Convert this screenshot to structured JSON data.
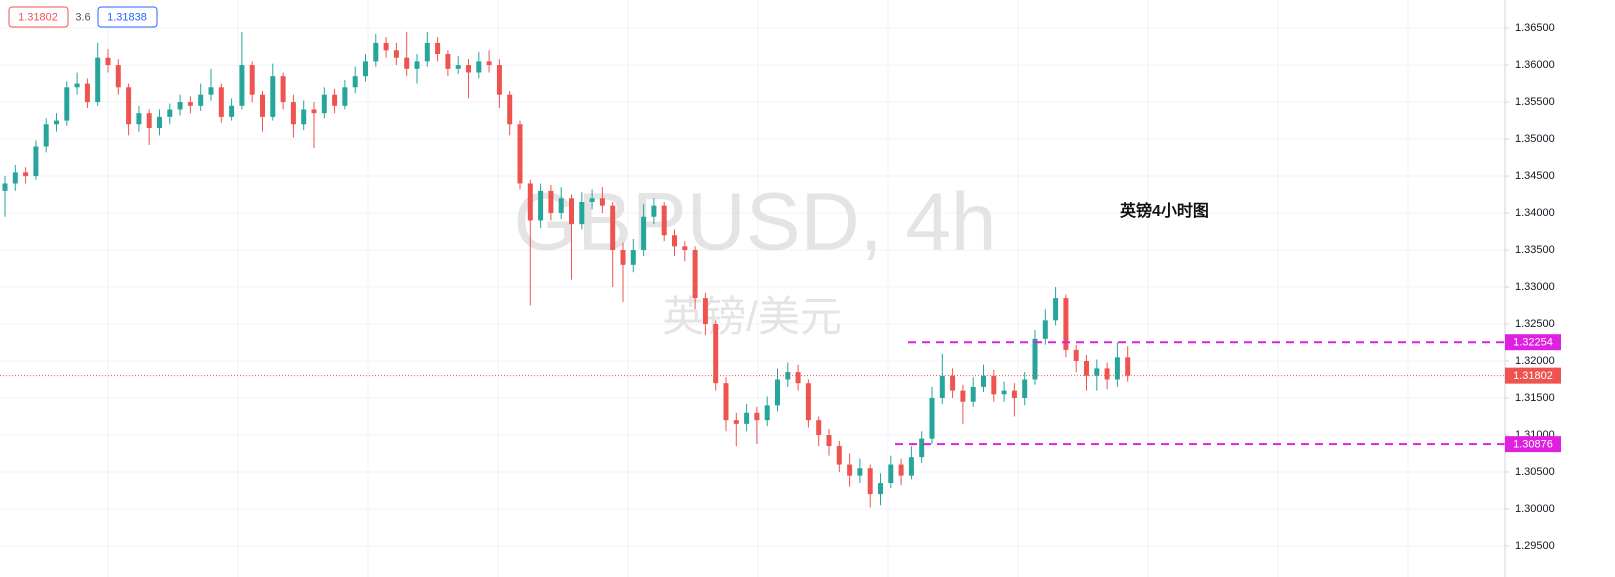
{
  "chart_data": {
    "type": "candlestick",
    "watermark": "GBPUSD, 4h",
    "watermark_sub": "英镑/美元",
    "annotation": "英镑4小时图",
    "bid": "1.31802",
    "spread": "3.6",
    "ask": "1.31838",
    "up_color": "#26a69a",
    "down_color": "#ef5350",
    "level_color": "#e020e0",
    "levels": [
      1.32254,
      1.30876
    ],
    "ylim": [
      1.2908,
      1.3688
    ],
    "yticks": [
      {
        "value": 1.365,
        "label": "1.36500"
      },
      {
        "value": 1.36,
        "label": "1.36000"
      },
      {
        "value": 1.355,
        "label": "1.35500"
      },
      {
        "value": 1.35,
        "label": "1.35000"
      },
      {
        "value": 1.345,
        "label": "1.34500"
      },
      {
        "value": 1.34,
        "label": "1.34000"
      },
      {
        "value": 1.335,
        "label": "1.33500"
      },
      {
        "value": 1.33,
        "label": "1.33000"
      },
      {
        "value": 1.325,
        "label": "1.32500"
      },
      {
        "value": 1.32,
        "label": "1.32000"
      },
      {
        "value": 1.315,
        "label": "1.31500"
      },
      {
        "value": 1.31,
        "label": "1.31000"
      },
      {
        "value": 1.305,
        "label": "1.30500"
      },
      {
        "value": 1.3,
        "label": "1.30000"
      },
      {
        "value": 1.295,
        "label": "1.29500"
      }
    ],
    "grid": true,
    "ohlc": [
      [
        1.343,
        1.345,
        1.3395,
        1.344
      ],
      [
        1.344,
        1.3465,
        1.343,
        1.3455
      ],
      [
        1.3455,
        1.3462,
        1.344,
        1.345
      ],
      [
        1.345,
        1.3498,
        1.3445,
        1.349
      ],
      [
        1.349,
        1.3528,
        1.3482,
        1.352
      ],
      [
        1.352,
        1.3535,
        1.351,
        1.3525
      ],
      [
        1.3525,
        1.3578,
        1.3518,
        1.357
      ],
      [
        1.357,
        1.359,
        1.356,
        1.3575
      ],
      [
        1.3575,
        1.3582,
        1.3542,
        1.355
      ],
      [
        1.355,
        1.363,
        1.3545,
        1.361
      ],
      [
        1.361,
        1.3622,
        1.359,
        1.36
      ],
      [
        1.36,
        1.3608,
        1.356,
        1.357
      ],
      [
        1.357,
        1.3575,
        1.3505,
        1.352
      ],
      [
        1.352,
        1.3545,
        1.351,
        1.3535
      ],
      [
        1.3535,
        1.354,
        1.3492,
        1.3515
      ],
      [
        1.3515,
        1.354,
        1.3505,
        1.353
      ],
      [
        1.353,
        1.3548,
        1.352,
        1.354
      ],
      [
        1.354,
        1.356,
        1.3532,
        1.355
      ],
      [
        1.355,
        1.3558,
        1.3535,
        1.3545
      ],
      [
        1.3545,
        1.3575,
        1.3538,
        1.356
      ],
      [
        1.356,
        1.3595,
        1.3552,
        1.357
      ],
      [
        1.357,
        1.3575,
        1.3522,
        1.353
      ],
      [
        1.353,
        1.3555,
        1.3525,
        1.3545
      ],
      [
        1.3545,
        1.3645,
        1.354,
        1.36
      ],
      [
        1.36,
        1.3605,
        1.355,
        1.356
      ],
      [
        1.356,
        1.3565,
        1.351,
        1.353
      ],
      [
        1.353,
        1.3602,
        1.3525,
        1.3585
      ],
      [
        1.3585,
        1.359,
        1.354,
        1.355
      ],
      [
        1.355,
        1.356,
        1.3502,
        1.352
      ],
      [
        1.352,
        1.3552,
        1.3512,
        1.354
      ],
      [
        1.354,
        1.355,
        1.3488,
        1.3535
      ],
      [
        1.3535,
        1.357,
        1.3528,
        1.356
      ],
      [
        1.356,
        1.3568,
        1.3535,
        1.3545
      ],
      [
        1.3545,
        1.358,
        1.354,
        1.357
      ],
      [
        1.357,
        1.3598,
        1.3562,
        1.3585
      ],
      [
        1.3585,
        1.3615,
        1.3578,
        1.3605
      ],
      [
        1.3605,
        1.3642,
        1.3598,
        1.363
      ],
      [
        1.363,
        1.3638,
        1.361,
        1.362
      ],
      [
        1.362,
        1.363,
        1.36,
        1.361
      ],
      [
        1.361,
        1.3645,
        1.3585,
        1.3595
      ],
      [
        1.3595,
        1.3615,
        1.3575,
        1.3605
      ],
      [
        1.3605,
        1.3645,
        1.3598,
        1.363
      ],
      [
        1.363,
        1.3638,
        1.3605,
        1.3615
      ],
      [
        1.3615,
        1.362,
        1.3585,
        1.3595
      ],
      [
        1.3595,
        1.3612,
        1.3588,
        1.36
      ],
      [
        1.36,
        1.3608,
        1.3555,
        1.359
      ],
      [
        1.359,
        1.3618,
        1.3582,
        1.3605
      ],
      [
        1.3605,
        1.362,
        1.359,
        1.36
      ],
      [
        1.36,
        1.3608,
        1.3542,
        1.356
      ],
      [
        1.356,
        1.3565,
        1.3505,
        1.352
      ],
      [
        1.352,
        1.3525,
        1.3432,
        1.344
      ],
      [
        1.344,
        1.3445,
        1.3275,
        1.339
      ],
      [
        1.339,
        1.344,
        1.338,
        1.343
      ],
      [
        1.343,
        1.3438,
        1.339,
        1.34
      ],
      [
        1.34,
        1.3435,
        1.3392,
        1.342
      ],
      [
        1.342,
        1.3425,
        1.331,
        1.3385
      ],
      [
        1.3385,
        1.3428,
        1.3378,
        1.3415
      ],
      [
        1.3415,
        1.3432,
        1.3405,
        1.342
      ],
      [
        1.342,
        1.3435,
        1.34,
        1.341
      ],
      [
        1.341,
        1.3415,
        1.33,
        1.335
      ],
      [
        1.335,
        1.336,
        1.328,
        1.333
      ],
      [
        1.333,
        1.3365,
        1.332,
        1.335
      ],
      [
        1.335,
        1.3412,
        1.3342,
        1.3395
      ],
      [
        1.3395,
        1.342,
        1.3385,
        1.341
      ],
      [
        1.341,
        1.3415,
        1.3362,
        1.337
      ],
      [
        1.337,
        1.3378,
        1.3342,
        1.3355
      ],
      [
        1.3355,
        1.3362,
        1.3335,
        1.335
      ],
      [
        1.335,
        1.3355,
        1.327,
        1.3285
      ],
      [
        1.3285,
        1.3292,
        1.3235,
        1.325
      ],
      [
        1.325,
        1.3255,
        1.316,
        1.317
      ],
      [
        1.317,
        1.3178,
        1.3105,
        1.312
      ],
      [
        1.312,
        1.313,
        1.3085,
        1.3115
      ],
      [
        1.3115,
        1.3142,
        1.3105,
        1.313
      ],
      [
        1.313,
        1.3138,
        1.3088,
        1.312
      ],
      [
        1.312,
        1.3152,
        1.3112,
        1.314
      ],
      [
        1.314,
        1.319,
        1.3132,
        1.3175
      ],
      [
        1.3175,
        1.3198,
        1.3165,
        1.3185
      ],
      [
        1.3185,
        1.3195,
        1.316,
        1.317
      ],
      [
        1.317,
        1.3175,
        1.311,
        1.312
      ],
      [
        1.312,
        1.3125,
        1.3085,
        1.31
      ],
      [
        1.31,
        1.3108,
        1.3072,
        1.3085
      ],
      [
        1.3085,
        1.3092,
        1.305,
        1.306
      ],
      [
        1.306,
        1.3075,
        1.303,
        1.3045
      ],
      [
        1.3045,
        1.3068,
        1.3035,
        1.3055
      ],
      [
        1.3055,
        1.306,
        1.3002,
        1.302
      ],
      [
        1.302,
        1.3048,
        1.3005,
        1.3035
      ],
      [
        1.3035,
        1.3072,
        1.3028,
        1.306
      ],
      [
        1.306,
        1.3068,
        1.3032,
        1.3045
      ],
      [
        1.3045,
        1.3085,
        1.304,
        1.307
      ],
      [
        1.307,
        1.3105,
        1.3062,
        1.3095
      ],
      [
        1.3095,
        1.3165,
        1.3088,
        1.315
      ],
      [
        1.315,
        1.321,
        1.3142,
        1.318
      ],
      [
        1.318,
        1.319,
        1.315,
        1.316
      ],
      [
        1.316,
        1.3168,
        1.3115,
        1.3145
      ],
      [
        1.3145,
        1.3178,
        1.3138,
        1.3165
      ],
      [
        1.3165,
        1.3195,
        1.3158,
        1.318
      ],
      [
        1.318,
        1.3188,
        1.3145,
        1.3155
      ],
      [
        1.3155,
        1.3172,
        1.3145,
        1.316
      ],
      [
        1.316,
        1.317,
        1.3125,
        1.315
      ],
      [
        1.315,
        1.3185,
        1.314,
        1.3175
      ],
      [
        1.3175,
        1.3242,
        1.3168,
        1.323
      ],
      [
        1.323,
        1.327,
        1.3222,
        1.3255
      ],
      [
        1.3255,
        1.33,
        1.3248,
        1.3285
      ],
      [
        1.3285,
        1.329,
        1.3205,
        1.3215
      ],
      [
        1.3215,
        1.3222,
        1.3185,
        1.32
      ],
      [
        1.32,
        1.3208,
        1.316,
        1.318
      ],
      [
        1.318,
        1.3202,
        1.316,
        1.319
      ],
      [
        1.319,
        1.3198,
        1.3162,
        1.3175
      ],
      [
        1.3175,
        1.3225,
        1.3165,
        1.3205
      ],
      [
        1.3205,
        1.322,
        1.3172,
        1.31802
      ]
    ]
  }
}
